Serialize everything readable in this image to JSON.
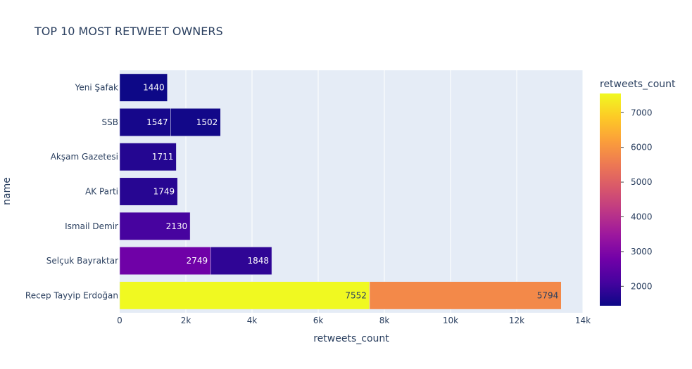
{
  "chart_data": {
    "type": "bar",
    "orientation": "horizontal",
    "barmode": "stack",
    "title": "TOP 10 MOST RETWEET OWNERS",
    "xlabel": "retweets_count",
    "ylabel": "name",
    "xlim": [
      0,
      14000
    ],
    "x_ticks": [
      0,
      2000,
      4000,
      6000,
      8000,
      10000,
      12000,
      14000
    ],
    "x_tick_labels": [
      "0",
      "2k",
      "4k",
      "6k",
      "8k",
      "10k",
      "12k",
      "14k"
    ],
    "categories": [
      "Yeni Şafak",
      "SSB",
      "Akşam Gazetesi",
      "AK Parti",
      "Ismail Demir",
      "Selçuk Bayraktar",
      "Recep Tayyip Erdoğan"
    ],
    "segments": [
      [
        1440
      ],
      [
        1547,
        1502
      ],
      [
        1711
      ],
      [
        1749
      ],
      [
        2130
      ],
      [
        2749,
        1848
      ],
      [
        7552,
        5794
      ]
    ],
    "colorbar": {
      "title": "retweets_count",
      "min": 1440,
      "max": 7552,
      "ticks": [
        2000,
        3000,
        4000,
        5000,
        6000,
        7000
      ],
      "tick_labels": [
        "2000",
        "3000",
        "4000",
        "5000",
        "6000",
        "7000"
      ],
      "colorscale": [
        "#0d0887",
        "#46039f",
        "#7201a8",
        "#9c179e",
        "#bd3786",
        "#d8576b",
        "#ed7953",
        "#fb9f3a",
        "#fdca26",
        "#f0f921"
      ]
    },
    "grid": true,
    "plot_bgcolor": "#e5ecf6"
  }
}
